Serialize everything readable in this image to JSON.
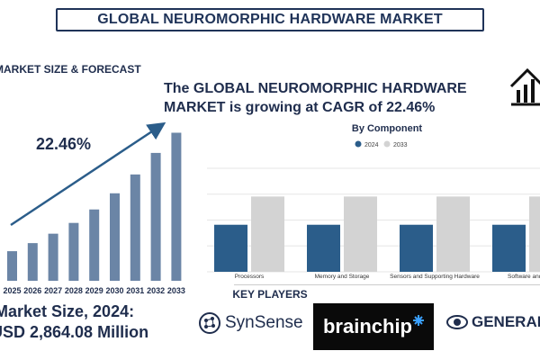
{
  "title": "GLOBAL NEUROMORPHIC HARDWARE MARKET",
  "market_size": {
    "heading": "MARKET SIZE & FORECAST",
    "cagr_label": "22.46%",
    "label": "Market Size, 2024:",
    "value": "USD 2,864.08 Million"
  },
  "headline": "The GLOBAL NEUROMORPHIC HARDWARE MARKET is growing at CAGR of 22.46%",
  "key_players": {
    "title": "KEY PLAYERS",
    "logos": [
      {
        "name": "SynSense",
        "icon": "synsense-logo-icon"
      },
      {
        "name": "brainchip",
        "icon": "brainchip-logo-icon"
      },
      {
        "name": "GENERAL V",
        "icon": "general-vision-logo-icon"
      }
    ]
  },
  "colors": {
    "navy": "#1f2d4d",
    "bar_2024": "#2b5d8a",
    "bar_2033": "#d3d3d3",
    "growth_bar": "#6b85a6"
  },
  "chart_data": [
    {
      "type": "bar",
      "title": "",
      "categories": [
        "2025",
        "2026",
        "2027",
        "2028",
        "2029",
        "2030",
        "2031",
        "2032",
        "2033"
      ],
      "values": [
        2.2,
        2.8,
        3.5,
        4.3,
        5.3,
        6.5,
        7.9,
        9.5,
        11.0
      ],
      "annotation": "22.46%",
      "ylim": [
        0,
        11.5
      ],
      "grid": false
    },
    {
      "type": "bar",
      "title": "By Component",
      "categories": [
        "Processors",
        "Memory and Storage",
        "Sensors and Supporting Hardware",
        "Software and T"
      ],
      "series": [
        {
          "name": "2024",
          "values": [
            1.0,
            1.0,
            1.0,
            1.0
          ]
        },
        {
          "name": "2033",
          "values": [
            1.6,
            1.6,
            1.6,
            1.6
          ]
        }
      ],
      "ylim": [
        0,
        2.2
      ],
      "grid": true,
      "legend": "top-center"
    }
  ]
}
